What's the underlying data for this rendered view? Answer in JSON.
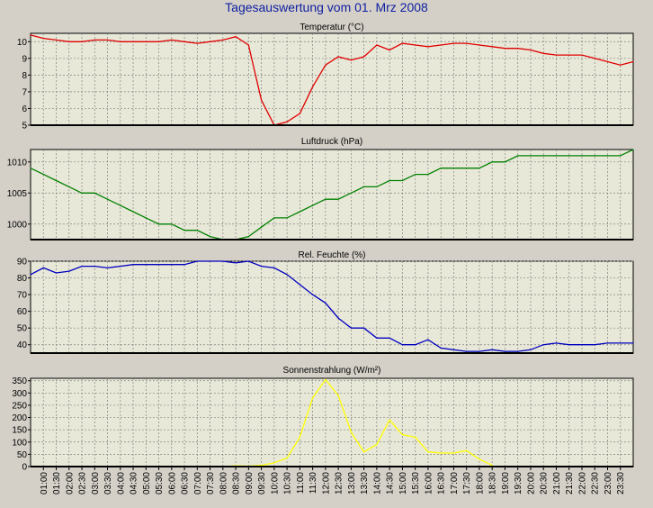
{
  "page_title": "Tagesauswertung vom 01. Mrz 2008",
  "colors": {
    "background": "#d4d0c8",
    "plot_background": "#e8e8d8",
    "title": "#1020a0",
    "temperature": "#e00000",
    "pressure": "#008000",
    "humidity": "#0000c0",
    "radiation": "#ffff00"
  },
  "x_axis": {
    "labels": [
      "01:00",
      "01:30",
      "02:00",
      "02:30",
      "03:00",
      "03:30",
      "04:00",
      "04:30",
      "05:00",
      "05:30",
      "06:00",
      "06:30",
      "07:00",
      "07:30",
      "08:00",
      "08:30",
      "09:00",
      "09:30",
      "10:00",
      "10:30",
      "11:00",
      "11:30",
      "12:00",
      "12:30",
      "13:00",
      "13:30",
      "14:00",
      "14:30",
      "15:00",
      "15:30",
      "16:00",
      "16:30",
      "17:00",
      "17:30",
      "18:00",
      "18:30",
      "19:00",
      "19:30",
      "20:00",
      "20:30",
      "21:00",
      "21:30",
      "22:00",
      "22:30",
      "23:00",
      "23:30"
    ]
  },
  "chart_data": [
    {
      "type": "line",
      "title": "Temperatur (°C)",
      "ylim": [
        5,
        10.5
      ],
      "yticks": [
        5,
        6,
        7,
        8,
        9,
        10
      ],
      "grid": true,
      "series": [
        {
          "x": [
            0.5,
            1,
            1.5,
            2,
            2.5,
            3,
            3.5,
            4,
            4.5,
            5,
            5.5,
            6,
            6.5,
            7,
            7.5,
            8,
            8.5,
            9,
            9.5,
            10,
            10.5,
            11,
            11.5,
            12,
            12.5,
            13,
            13.5,
            14,
            14.5,
            15,
            15.5,
            16,
            16.5,
            17,
            17.5,
            18,
            18.5,
            19,
            19.5,
            20,
            20.5,
            21,
            21.5,
            22,
            22.5,
            23,
            23.5,
            24
          ],
          "values": [
            10.4,
            10.2,
            10.1,
            10.0,
            10.0,
            10.1,
            10.1,
            10.0,
            10.0,
            10.0,
            10.0,
            10.1,
            10.0,
            9.9,
            10.0,
            10.1,
            10.3,
            9.8,
            6.5,
            5.0,
            5.2,
            5.7,
            7.3,
            8.6,
            9.1,
            8.9,
            9.1,
            9.8,
            9.5,
            9.9,
            9.8,
            9.7,
            9.8,
            9.9,
            9.9,
            9.8,
            9.7,
            9.6,
            9.6,
            9.5,
            9.3,
            9.2,
            9.2,
            9.2,
            9.0,
            8.8,
            8.6,
            8.8
          ]
        }
      ]
    },
    {
      "type": "line",
      "title": "Luftdruck (hPa)",
      "ylim": [
        997.5,
        1012
      ],
      "yticks": [
        1000,
        1005,
        1010
      ],
      "grid": true,
      "series": [
        {
          "x": [
            0.5,
            1,
            1.5,
            2,
            2.5,
            3,
            3.5,
            4,
            4.5,
            5,
            5.5,
            6,
            6.5,
            7,
            7.5,
            8,
            8.5,
            9,
            9.5,
            10,
            10.5,
            11,
            11.5,
            12,
            12.5,
            13,
            13.5,
            14,
            14.5,
            15,
            15.5,
            16,
            16.5,
            17,
            17.5,
            18,
            18.5,
            19,
            19.5,
            20,
            20.5,
            21,
            21.5,
            22,
            22.5,
            23,
            23.5,
            24
          ],
          "values": [
            1009,
            1008,
            1007,
            1006,
            1005,
            1005,
            1004,
            1003,
            1002,
            1001,
            1000,
            1000,
            999,
            999,
            998,
            997.5,
            997.5,
            998,
            999.5,
            1001,
            1001,
            1002,
            1003,
            1004,
            1004,
            1005,
            1006,
            1006,
            1007,
            1007,
            1008,
            1008,
            1009,
            1009,
            1009,
            1009,
            1010,
            1010,
            1011,
            1011,
            1011,
            1011,
            1011,
            1011,
            1011,
            1011,
            1011,
            1012
          ]
        }
      ]
    },
    {
      "type": "line",
      "title": "Rel. Feuchte (%)",
      "ylim": [
        35,
        90
      ],
      "yticks": [
        40,
        50,
        60,
        70,
        80,
        90
      ],
      "grid": true,
      "series": [
        {
          "x": [
            0.5,
            1,
            1.5,
            2,
            2.5,
            3,
            3.5,
            4,
            4.5,
            5,
            5.5,
            6,
            6.5,
            7,
            7.5,
            8,
            8.5,
            9,
            9.5,
            10,
            10.5,
            11,
            11.5,
            12,
            12.5,
            13,
            13.5,
            14,
            14.5,
            15,
            15.5,
            16,
            16.5,
            17,
            17.5,
            18,
            18.5,
            19,
            19.5,
            20,
            20.5,
            21,
            21.5,
            22,
            22.5,
            23,
            23.5,
            24
          ],
          "values": [
            82,
            86,
            83,
            84,
            87,
            87,
            86,
            87,
            88,
            88,
            88,
            88,
            88,
            90,
            90,
            90,
            89,
            90,
            87,
            86,
            82,
            76,
            70,
            65,
            56,
            50,
            50,
            44,
            44,
            40,
            40,
            43,
            38,
            37,
            36,
            36,
            37,
            36,
            36,
            37,
            40,
            41,
            40,
            40,
            40,
            41,
            41,
            41
          ]
        }
      ]
    },
    {
      "type": "line",
      "title": "Sonnenstrahlung (W/m²)",
      "ylim": [
        0,
        360
      ],
      "yticks": [
        0,
        50,
        100,
        150,
        200,
        250,
        300,
        350
      ],
      "grid": true,
      "series": [
        {
          "x": [
            8,
            8.5,
            9,
            9.5,
            10,
            10.5,
            11,
            11.5,
            12,
            12.5,
            13,
            13.5,
            14,
            14.5,
            15,
            15.5,
            16,
            16.5,
            17,
            17.5,
            18,
            18.5
          ],
          "values": [
            0,
            3,
            2,
            5,
            15,
            35,
            120,
            280,
            355,
            290,
            140,
            60,
            90,
            190,
            130,
            120,
            60,
            55,
            55,
            65,
            30,
            5
          ]
        }
      ]
    }
  ]
}
